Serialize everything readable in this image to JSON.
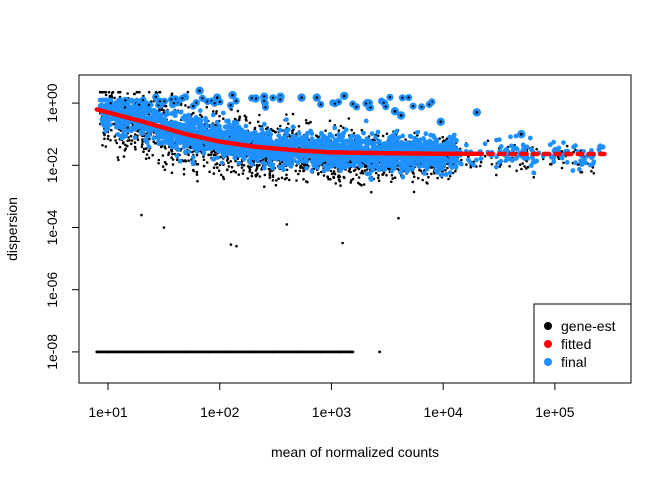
{
  "chart_data": {
    "type": "scatter",
    "title": "",
    "xlabel": "mean of normalized counts",
    "ylabel": "dispersion",
    "x_scale": "log10",
    "y_scale": "log10",
    "xlim": [
      5.5,
      480000
    ],
    "ylim": [
      1e-09,
      8
    ],
    "x_ticks": [
      {
        "value": 10,
        "label": "1e+01"
      },
      {
        "value": 100,
        "label": "1e+02"
      },
      {
        "value": 1000,
        "label": "1e+03"
      },
      {
        "value": 10000,
        "label": "1e+04"
      },
      {
        "value": 100000,
        "label": "1e+05"
      }
    ],
    "y_ticks": [
      {
        "value": 1e-08,
        "label": "1e-08"
      },
      {
        "value": 1e-06,
        "label": "1e-06"
      },
      {
        "value": 0.0001,
        "label": "1e-04"
      },
      {
        "value": 0.01,
        "label": "1e-02"
      },
      {
        "value": 1,
        "label": "1e+00"
      }
    ],
    "legend_position": "bottom-right",
    "series": [
      {
        "name": "gene-est",
        "color": "#000000"
      },
      {
        "name": "fitted",
        "color": "#ff0000"
      },
      {
        "name": "final",
        "color": "#1e90ff"
      }
    ],
    "fitted_curve": {
      "x": [
        8,
        10,
        15,
        20,
        30,
        50,
        100,
        200,
        500,
        1000,
        2000,
        5000,
        10000,
        50000,
        100000,
        300000
      ],
      "y": [
        0.62,
        0.5,
        0.34,
        0.26,
        0.17,
        0.1,
        0.058,
        0.04,
        0.03,
        0.026,
        0.025,
        0.024,
        0.0235,
        0.0232,
        0.023,
        0.023
      ]
    },
    "gene_est_low_points": {
      "x": [
        8,
        10,
        15,
        20,
        30,
        50,
        80,
        120,
        200,
        300,
        500,
        800,
        1200,
        1500,
        2700
      ],
      "y": [
        1e-08,
        1e-08,
        1e-08,
        1e-08,
        1e-08,
        1e-08,
        1e-08,
        1e-08,
        1e-08,
        1e-08,
        1e-08,
        1e-08,
        1e-08,
        1e-08,
        1e-08
      ]
    },
    "outlier_points": {
      "x": [
        66,
        95,
        350,
        130,
        250,
        40,
        210,
        540,
        740,
        1300,
        2100,
        3700,
        4200,
        9500,
        20000,
        50000
      ],
      "y": [
        2.5,
        1.5,
        1.6,
        1.8,
        1.6,
        1.3,
        1.4,
        1.5,
        1.5,
        1.7,
        1.0,
        0.55,
        0.4,
        0.25,
        0.5,
        0.1
      ]
    }
  }
}
